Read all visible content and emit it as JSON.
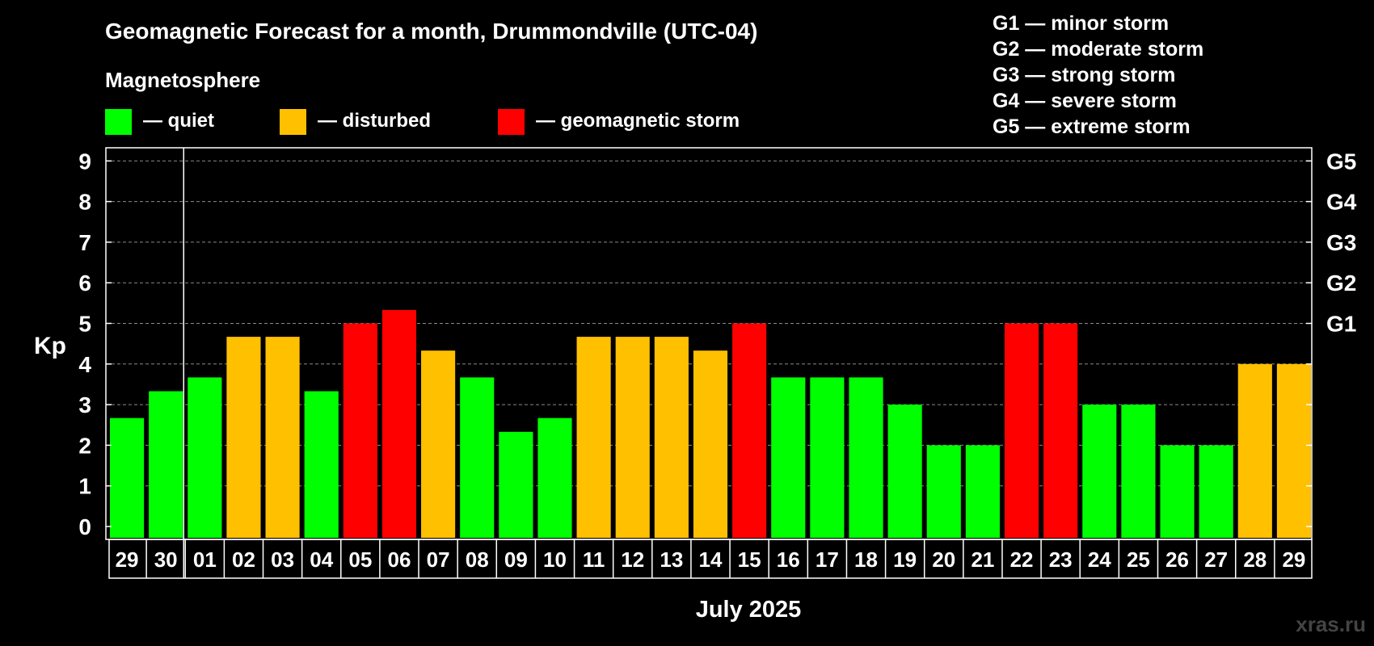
{
  "header": {
    "title": "Geomagnetic Forecast for a month, Drummondville (UTC-04)",
    "section_label": "Magnetosphere"
  },
  "legend": [
    {
      "label": "— quiet",
      "color": "#00ff00"
    },
    {
      "label": "— disturbed",
      "color": "#ffc000"
    },
    {
      "label": "— geomagnetic storm",
      "color": "#ff0000"
    }
  ],
  "storm_scale": [
    "G1 — minor storm",
    "G2 — moderate storm",
    "G3 — strong storm",
    "G4 — severe storm",
    "G5 — extreme storm"
  ],
  "watermark": "xras.ru",
  "chart_data": {
    "type": "bar",
    "title": "Geomagnetic Forecast for a month, Drummondville (UTC-04)",
    "xlabel": "July 2025",
    "ylabel": "Kp",
    "ylim": [
      0,
      9.5
    ],
    "yticks": [
      0,
      1,
      2,
      3,
      4,
      5,
      6,
      7,
      8,
      9
    ],
    "right_axis_labels": [
      {
        "value": 5,
        "label": "G1"
      },
      {
        "value": 6,
        "label": "G2"
      },
      {
        "value": 7,
        "label": "G3"
      },
      {
        "value": 8,
        "label": "G4"
      },
      {
        "value": 9,
        "label": "G5"
      }
    ],
    "month_divider_after_index": 1,
    "categories": [
      "29",
      "30",
      "01",
      "02",
      "03",
      "04",
      "05",
      "06",
      "07",
      "08",
      "09",
      "10",
      "11",
      "12",
      "13",
      "14",
      "15",
      "16",
      "17",
      "18",
      "19",
      "20",
      "21",
      "22",
      "23",
      "24",
      "25",
      "26",
      "27",
      "28",
      "29"
    ],
    "values": [
      2.67,
      3.33,
      3.67,
      4.67,
      4.67,
      3.33,
      5.0,
      5.33,
      4.33,
      3.67,
      2.33,
      2.67,
      4.67,
      4.67,
      4.67,
      4.33,
      5.0,
      3.67,
      3.67,
      3.67,
      3.0,
      2.0,
      2.0,
      5.0,
      5.0,
      3.0,
      3.0,
      2.0,
      2.0,
      4.0,
      4.0
    ],
    "levels": [
      "quiet",
      "quiet",
      "quiet",
      "disturbed",
      "disturbed",
      "quiet",
      "storm",
      "storm",
      "disturbed",
      "quiet",
      "quiet",
      "quiet",
      "disturbed",
      "disturbed",
      "disturbed",
      "disturbed",
      "storm",
      "quiet",
      "quiet",
      "quiet",
      "quiet",
      "quiet",
      "quiet",
      "storm",
      "storm",
      "quiet",
      "quiet",
      "quiet",
      "quiet",
      "disturbed",
      "disturbed"
    ],
    "level_colors": {
      "quiet": "#00ff00",
      "disturbed": "#ffc000",
      "storm": "#ff0000"
    },
    "grid": true
  }
}
